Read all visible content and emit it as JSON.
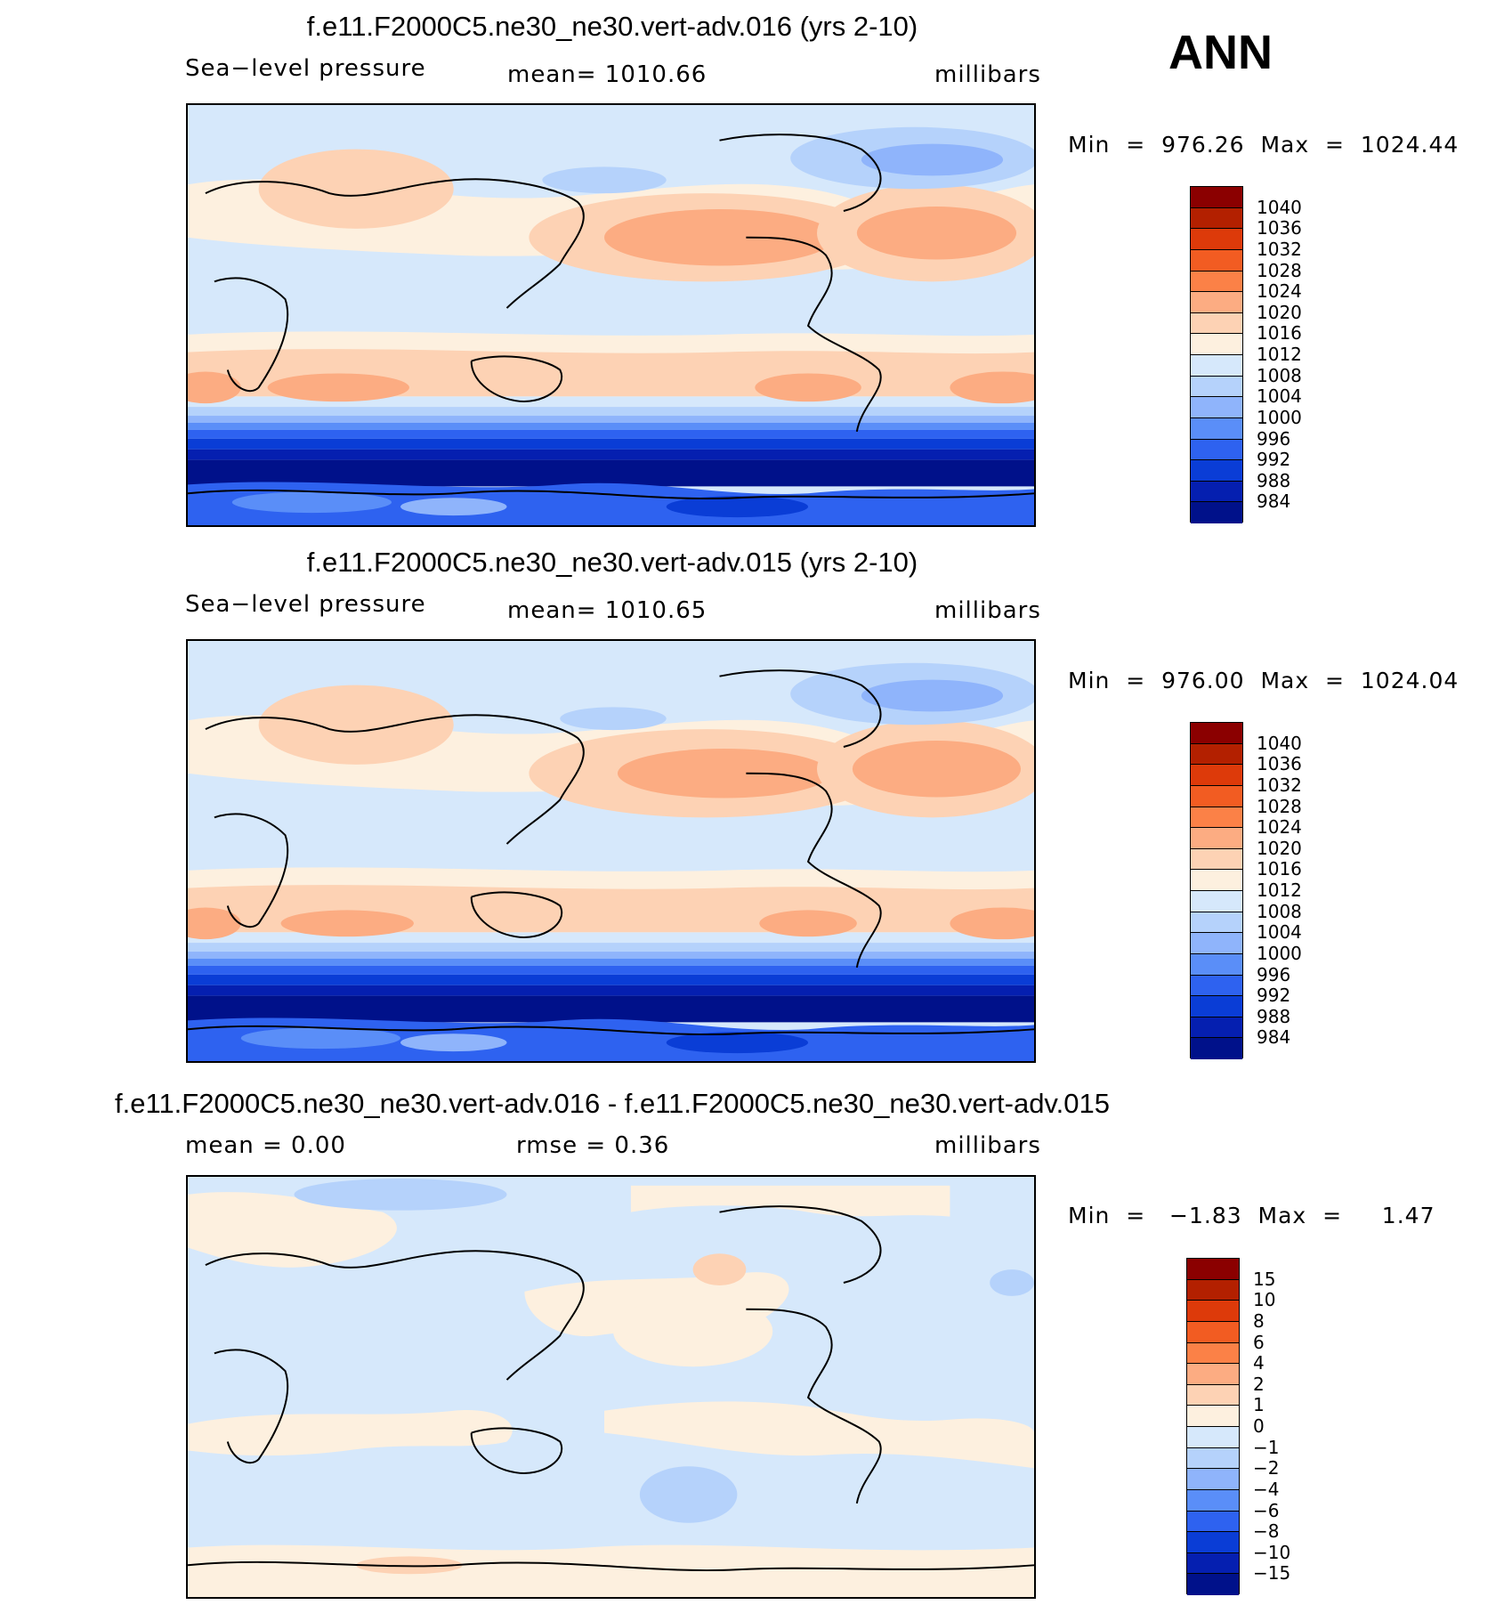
{
  "header": {
    "season": "ANN"
  },
  "panels": [
    {
      "title": "f.e11.F2000C5.ne30_ne30.vert-adv.016 (yrs 2-10)",
      "variable": "Sea−level pressure",
      "mean_text": "mean=  1010.66",
      "units": "millibars",
      "minmax": "Min  =  976.26  Max  =  1024.44",
      "colorbar_labels": [
        "1040",
        "1036",
        "1032",
        "1028",
        "1024",
        "1020",
        "1016",
        "1012",
        "1008",
        "1004",
        "1000",
        "996",
        "992",
        "988",
        "984"
      ]
    },
    {
      "title": "f.e11.F2000C5.ne30_ne30.vert-adv.015 (yrs 2-10)",
      "variable": "Sea−level pressure",
      "mean_text": "mean=  1010.65",
      "units": "millibars",
      "minmax": "Min  =  976.00  Max  =  1024.04",
      "colorbar_labels": [
        "1040",
        "1036",
        "1032",
        "1028",
        "1024",
        "1020",
        "1016",
        "1012",
        "1008",
        "1004",
        "1000",
        "996",
        "992",
        "988",
        "984"
      ]
    },
    {
      "title": "f.e11.F2000C5.ne30_ne30.vert-adv.016 - f.e11.F2000C5.ne30_ne30.vert-adv.015",
      "mean_text": "mean  =     0.00",
      "rmse_text": "rmse  =     0.36",
      "units": "millibars",
      "minmax": "Min  =   −1.83  Max  =     1.47",
      "colorbar_labels": [
        "15",
        "10",
        "8",
        "6",
        "4",
        "2",
        "1",
        "0",
        "−1",
        "−2",
        "−4",
        "−6",
        "−8",
        "−10",
        "−15"
      ]
    }
  ],
  "colors": {
    "abs_scale": [
      "#8b0000",
      "#b32000",
      "#dd3a0a",
      "#f25c22",
      "#fb8147",
      "#fcac82",
      "#fdd2b4",
      "#fdf0df",
      "#d6e8fb",
      "#b5d2fb",
      "#8fb4fb",
      "#5a8ef8",
      "#2e62f0",
      "#0a3dd6",
      "#051fb0",
      "#00118a"
    ],
    "diff_scale": [
      "#8b0000",
      "#b32000",
      "#dd3a0a",
      "#f25c22",
      "#fb8147",
      "#fcac82",
      "#fdd2b4",
      "#fdf0df",
      "#d6e8fb",
      "#b5d2fb",
      "#8fb4fb",
      "#5a8ef8",
      "#2e62f0",
      "#0a3dd6",
      "#051fb0",
      "#00118a"
    ]
  }
}
